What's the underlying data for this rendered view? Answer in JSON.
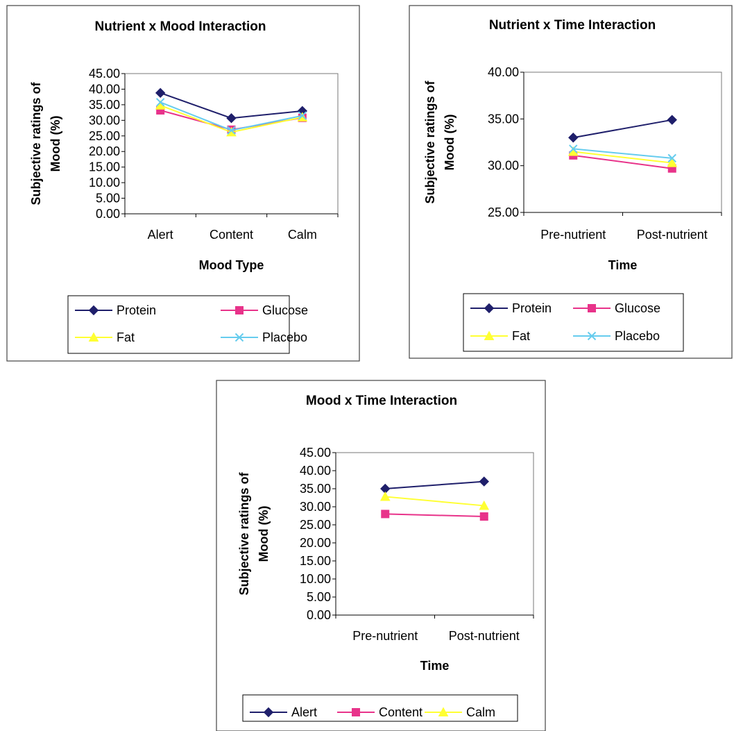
{
  "chart_data": [
    {
      "type": "line",
      "title": "Nutrient x Mood Interaction",
      "xlabel": "Mood Type",
      "ylabel": "Subjective ratings of Mood (%)",
      "ylabel_lines": [
        "Subjective ratings of",
        "Mood (%)"
      ],
      "categories": [
        "Alert",
        "Content",
        "Calm"
      ],
      "ylim": [
        0,
        45
      ],
      "yticks": [
        "45.00",
        "40.00",
        "35.00",
        "30.00",
        "25.00",
        "20.00",
        "15.00",
        "10.00",
        "5.00",
        "0.00"
      ],
      "grid": false,
      "legend_position": "bottom",
      "series": [
        {
          "name": "Protein",
          "values": [
            38.8,
            30.7,
            33.0
          ],
          "color": "#1F1F6B",
          "marker": "diamond"
        },
        {
          "name": "Glucose",
          "values": [
            33.2,
            27.0,
            30.8
          ],
          "color": "#E8338A",
          "marker": "square"
        },
        {
          "name": "Fat",
          "values": [
            34.8,
            26.2,
            31.0
          ],
          "color": "#FFFF33",
          "marker": "triangle"
        },
        {
          "name": "Placebo",
          "values": [
            35.8,
            26.8,
            31.5
          ],
          "color": "#66CCEE",
          "marker": "x"
        }
      ]
    },
    {
      "type": "line",
      "title": "Nutrient x Time Interaction",
      "xlabel": "Time",
      "ylabel": "Subjective ratings of Mood (%)",
      "ylabel_lines": [
        "Subjective ratings of",
        "Mood (%)"
      ],
      "categories": [
        "Pre-nutrient",
        "Post-nutrient"
      ],
      "ylim": [
        25,
        40
      ],
      "yticks": [
        "40.00",
        "35.00",
        "30.00",
        "25.00"
      ],
      "grid": false,
      "legend_position": "bottom",
      "series": [
        {
          "name": "Protein",
          "values": [
            33.0,
            34.9
          ],
          "color": "#1F1F6B",
          "marker": "diamond"
        },
        {
          "name": "Glucose",
          "values": [
            31.1,
            29.7
          ],
          "color": "#E8338A",
          "marker": "square"
        },
        {
          "name": "Fat",
          "values": [
            31.5,
            30.3
          ],
          "color": "#FFFF33",
          "marker": "triangle"
        },
        {
          "name": "Placebo",
          "values": [
            31.8,
            30.8
          ],
          "color": "#66CCEE",
          "marker": "x"
        }
      ]
    },
    {
      "type": "line",
      "title": "Mood x Time Interaction",
      "xlabel": "Time",
      "ylabel": "Subjective ratings of Mood (%)",
      "ylabel_lines": [
        "Subjective ratings of",
        "Mood (%)"
      ],
      "categories": [
        "Pre-nutrient",
        "Post-nutrient"
      ],
      "ylim": [
        0,
        45
      ],
      "yticks": [
        "45.00",
        "40.00",
        "35.00",
        "30.00",
        "25.00",
        "20.00",
        "15.00",
        "10.00",
        "5.00",
        "0.00"
      ],
      "grid": false,
      "legend_position": "bottom",
      "series": [
        {
          "name": "Alert",
          "values": [
            35.0,
            37.0
          ],
          "color": "#1F1F6B",
          "marker": "diamond"
        },
        {
          "name": "Content",
          "values": [
            28.0,
            27.3
          ],
          "color": "#E8338A",
          "marker": "square"
        },
        {
          "name": "Calm",
          "values": [
            32.8,
            30.3
          ],
          "color": "#FFFF33",
          "marker": "triangle"
        }
      ]
    }
  ]
}
